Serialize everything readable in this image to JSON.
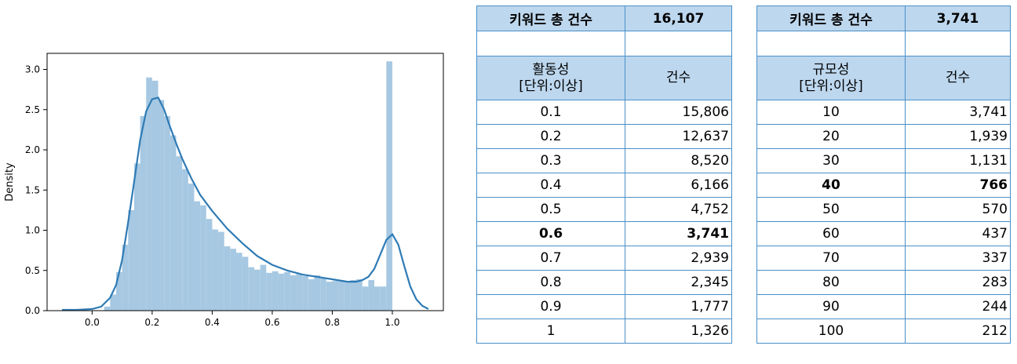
{
  "chart_data": {
    "type": "histogram+kde",
    "ylabel": "Density",
    "xlim": [
      -0.15,
      1.17
    ],
    "ylim": [
      0,
      3.2
    ],
    "xticks": [
      "0.0",
      "0.2",
      "0.4",
      "0.6",
      "0.8",
      "1.0"
    ],
    "yticks": [
      "0.0",
      "0.5",
      "1.0",
      "1.5",
      "2.0",
      "2.5",
      "3.0"
    ],
    "bar_color": "#a6c8e2",
    "line_color": "#2f7bb5",
    "bins": [
      {
        "x0": 0.04,
        "x1": 0.06,
        "y": 0.05
      },
      {
        "x0": 0.06,
        "x1": 0.08,
        "y": 0.2
      },
      {
        "x0": 0.08,
        "x1": 0.1,
        "y": 0.48
      },
      {
        "x0": 0.1,
        "x1": 0.12,
        "y": 0.82
      },
      {
        "x0": 0.12,
        "x1": 0.14,
        "y": 1.25
      },
      {
        "x0": 0.14,
        "x1": 0.16,
        "y": 1.83
      },
      {
        "x0": 0.16,
        "x1": 0.18,
        "y": 2.42
      },
      {
        "x0": 0.18,
        "x1": 0.2,
        "y": 2.9
      },
      {
        "x0": 0.2,
        "x1": 0.22,
        "y": 2.86
      },
      {
        "x0": 0.22,
        "x1": 0.24,
        "y": 2.62
      },
      {
        "x0": 0.24,
        "x1": 0.26,
        "y": 2.42
      },
      {
        "x0": 0.26,
        "x1": 0.28,
        "y": 2.18
      },
      {
        "x0": 0.28,
        "x1": 0.3,
        "y": 1.92
      },
      {
        "x0": 0.3,
        "x1": 0.32,
        "y": 1.76
      },
      {
        "x0": 0.32,
        "x1": 0.34,
        "y": 1.58
      },
      {
        "x0": 0.34,
        "x1": 0.36,
        "y": 1.36
      },
      {
        "x0": 0.36,
        "x1": 0.38,
        "y": 1.31
      },
      {
        "x0": 0.38,
        "x1": 0.4,
        "y": 1.14
      },
      {
        "x0": 0.4,
        "x1": 0.42,
        "y": 1.01
      },
      {
        "x0": 0.42,
        "x1": 0.44,
        "y": 0.98
      },
      {
        "x0": 0.44,
        "x1": 0.46,
        "y": 0.8
      },
      {
        "x0": 0.46,
        "x1": 0.48,
        "y": 0.77
      },
      {
        "x0": 0.48,
        "x1": 0.5,
        "y": 0.72
      },
      {
        "x0": 0.5,
        "x1": 0.52,
        "y": 0.67
      },
      {
        "x0": 0.52,
        "x1": 0.54,
        "y": 0.54
      },
      {
        "x0": 0.54,
        "x1": 0.56,
        "y": 0.51
      },
      {
        "x0": 0.56,
        "x1": 0.58,
        "y": 0.57
      },
      {
        "x0": 0.58,
        "x1": 0.6,
        "y": 0.47
      },
      {
        "x0": 0.6,
        "x1": 0.62,
        "y": 0.49
      },
      {
        "x0": 0.62,
        "x1": 0.64,
        "y": 0.46
      },
      {
        "x0": 0.64,
        "x1": 0.66,
        "y": 0.48
      },
      {
        "x0": 0.66,
        "x1": 0.68,
        "y": 0.44
      },
      {
        "x0": 0.68,
        "x1": 0.7,
        "y": 0.46
      },
      {
        "x0": 0.7,
        "x1": 0.72,
        "y": 0.43
      },
      {
        "x0": 0.72,
        "x1": 0.74,
        "y": 0.39
      },
      {
        "x0": 0.74,
        "x1": 0.76,
        "y": 0.44
      },
      {
        "x0": 0.76,
        "x1": 0.78,
        "y": 0.4
      },
      {
        "x0": 0.78,
        "x1": 0.8,
        "y": 0.36
      },
      {
        "x0": 0.8,
        "x1": 0.82,
        "y": 0.37
      },
      {
        "x0": 0.82,
        "x1": 0.84,
        "y": 0.38
      },
      {
        "x0": 0.84,
        "x1": 0.86,
        "y": 0.37
      },
      {
        "x0": 0.86,
        "x1": 0.88,
        "y": 0.38
      },
      {
        "x0": 0.88,
        "x1": 0.9,
        "y": 0.39
      },
      {
        "x0": 0.9,
        "x1": 0.92,
        "y": 0.3
      },
      {
        "x0": 0.92,
        "x1": 0.94,
        "y": 0.38
      },
      {
        "x0": 0.94,
        "x1": 0.96,
        "y": 0.3
      },
      {
        "x0": 0.96,
        "x1": 0.98,
        "y": 0.3
      },
      {
        "x0": 0.98,
        "x1": 1.0,
        "y": 3.1
      }
    ],
    "kde": [
      [
        -0.1,
        0.01
      ],
      [
        -0.05,
        0.01
      ],
      [
        0.0,
        0.02
      ],
      [
        0.03,
        0.05
      ],
      [
        0.06,
        0.16
      ],
      [
        0.08,
        0.32
      ],
      [
        0.1,
        0.63
      ],
      [
        0.12,
        1.1
      ],
      [
        0.14,
        1.6
      ],
      [
        0.16,
        2.12
      ],
      [
        0.18,
        2.48
      ],
      [
        0.2,
        2.63
      ],
      [
        0.22,
        2.65
      ],
      [
        0.24,
        2.5
      ],
      [
        0.26,
        2.28
      ],
      [
        0.28,
        2.08
      ],
      [
        0.3,
        1.89
      ],
      [
        0.33,
        1.65
      ],
      [
        0.36,
        1.44
      ],
      [
        0.4,
        1.24
      ],
      [
        0.45,
        1.02
      ],
      [
        0.5,
        0.84
      ],
      [
        0.55,
        0.68
      ],
      [
        0.6,
        0.57
      ],
      [
        0.65,
        0.5
      ],
      [
        0.7,
        0.45
      ],
      [
        0.75,
        0.42
      ],
      [
        0.8,
        0.39
      ],
      [
        0.85,
        0.36
      ],
      [
        0.88,
        0.36
      ],
      [
        0.9,
        0.38
      ],
      [
        0.92,
        0.42
      ],
      [
        0.94,
        0.52
      ],
      [
        0.96,
        0.7
      ],
      [
        0.98,
        0.88
      ],
      [
        1.0,
        0.95
      ],
      [
        1.02,
        0.82
      ],
      [
        1.04,
        0.55
      ],
      [
        1.06,
        0.3
      ],
      [
        1.08,
        0.14
      ],
      [
        1.1,
        0.06
      ],
      [
        1.12,
        0.02
      ]
    ]
  },
  "table_activity": {
    "total_label": "키워드 총 건수",
    "total_value": "16,107",
    "header_col1": "활동성\n[단위:이상]",
    "header_col2": "건수",
    "rows": [
      {
        "label": "0.1",
        "count": "15,806",
        "bold": false
      },
      {
        "label": "0.2",
        "count": "12,637",
        "bold": false
      },
      {
        "label": "0.3",
        "count": "8,520",
        "bold": false
      },
      {
        "label": "0.4",
        "count": "6,166",
        "bold": false
      },
      {
        "label": "0.5",
        "count": "4,752",
        "bold": false
      },
      {
        "label": "0.6",
        "count": "3,741",
        "bold": true
      },
      {
        "label": "0.7",
        "count": "2,939",
        "bold": false
      },
      {
        "label": "0.8",
        "count": "2,345",
        "bold": false
      },
      {
        "label": "0.9",
        "count": "1,777",
        "bold": false
      },
      {
        "label": "1",
        "count": "1,326",
        "bold": false
      }
    ]
  },
  "table_scale": {
    "total_label": "키워드 총 건수",
    "total_value": "3,741",
    "header_col1": "규모성\n[단위:이상]",
    "header_col2": "건수",
    "rows": [
      {
        "label": "10",
        "count": "3,741",
        "bold": false
      },
      {
        "label": "20",
        "count": "1,939",
        "bold": false
      },
      {
        "label": "30",
        "count": "1,131",
        "bold": false
      },
      {
        "label": "40",
        "count": "766",
        "bold": true
      },
      {
        "label": "50",
        "count": "570",
        "bold": false
      },
      {
        "label": "60",
        "count": "437",
        "bold": false
      },
      {
        "label": "70",
        "count": "337",
        "bold": false
      },
      {
        "label": "80",
        "count": "283",
        "bold": false
      },
      {
        "label": "90",
        "count": "244",
        "bold": false
      },
      {
        "label": "100",
        "count": "212",
        "bold": false
      }
    ]
  },
  "colors": {
    "table_header_bg": "#bdd7ee",
    "table_border": "#4a90c8"
  }
}
